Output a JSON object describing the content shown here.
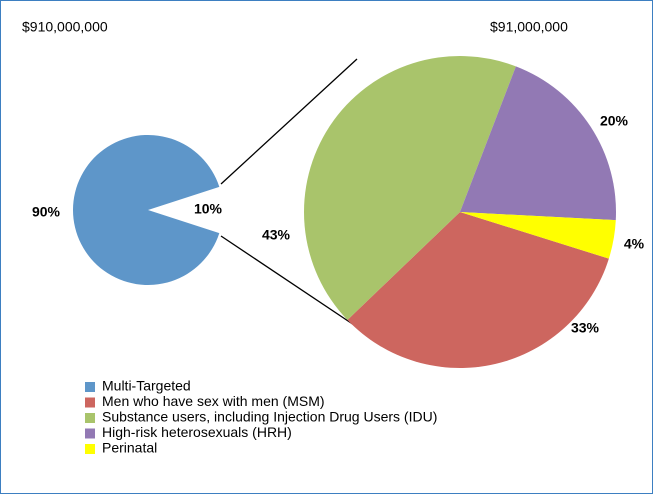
{
  "chart_data": {
    "type": "pie-of-pie",
    "categories": [
      "Multi-Targeted",
      "Men who have sex with men (MSM)",
      "Substance users, including Injection Drug Users (IDU)",
      "High-risk heterosexuals (HRH)",
      "Perinatal"
    ],
    "colors": [
      "#5e96c9",
      "#cd665f",
      "#a9c46b",
      "#9279b4",
      "#ffff00"
    ],
    "main": {
      "title": "$910,000,000",
      "values": [
        90,
        10
      ],
      "value_labels": [
        "90%",
        "10%"
      ]
    },
    "detail": {
      "title": "$91,000,000",
      "values": [
        33,
        43,
        20,
        4
      ],
      "value_labels": [
        "33%",
        "43%",
        "20%",
        "4%"
      ]
    }
  }
}
